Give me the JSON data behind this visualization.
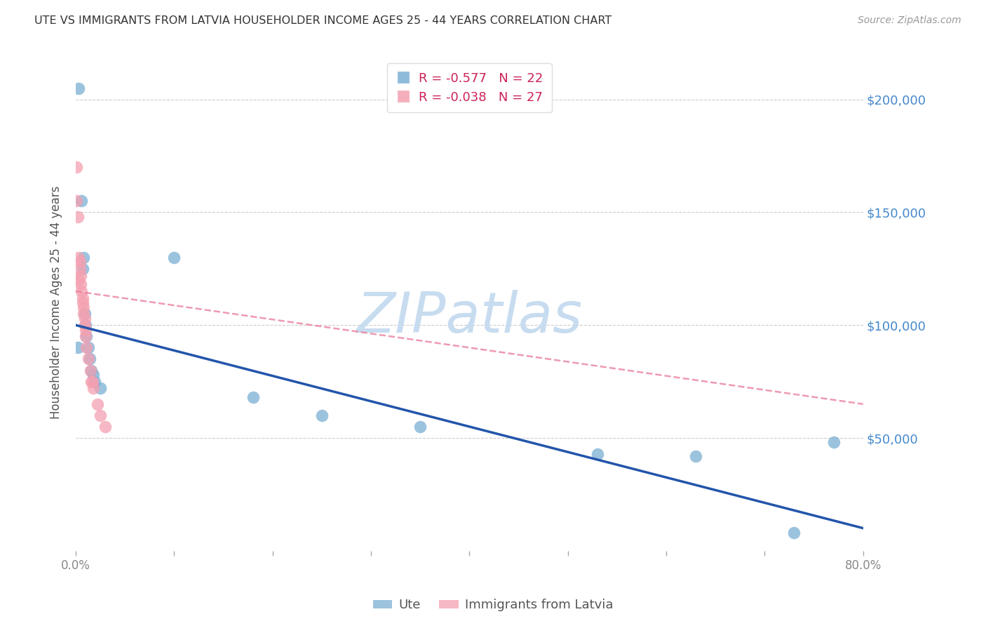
{
  "title": "UTE VS IMMIGRANTS FROM LATVIA HOUSEHOLDER INCOME AGES 25 - 44 YEARS CORRELATION CHART",
  "source": "Source: ZipAtlas.com",
  "ylabel": "Householder Income Ages 25 - 44 years",
  "ute_label": "Ute",
  "latvia_label": "Immigrants from Latvia",
  "ute_R": -0.577,
  "ute_N": 22,
  "latvia_R": -0.038,
  "latvia_N": 27,
  "xlim": [
    0.0,
    0.8
  ],
  "ylim": [
    0,
    220000
  ],
  "yticks": [
    0,
    50000,
    100000,
    150000,
    200000
  ],
  "ytick_labels": [
    "",
    "$50,000",
    "$100,000",
    "$150,000",
    "$200,000"
  ],
  "xticks": [
    0.0,
    0.1,
    0.2,
    0.3,
    0.4,
    0.5,
    0.6,
    0.7,
    0.8
  ],
  "xtick_labels": [
    "0.0%",
    "",
    "",
    "",
    "",
    "",
    "",
    "",
    "80.0%"
  ],
  "ute_color": "#7BAFD4",
  "latvia_color": "#F4A0B0",
  "ute_line_color": "#2255AA",
  "latvia_line_color": "#E87090",
  "watermark_text": "ZIPatlas",
  "watermark_color": "#C8DCF0",
  "background_color": "#FFFFFF",
  "ute_x": [
    0.003,
    0.006,
    0.007,
    0.008,
    0.009,
    0.01,
    0.011,
    0.013,
    0.014,
    0.016,
    0.018,
    0.019,
    0.025,
    0.1,
    0.18,
    0.25,
    0.35,
    0.53,
    0.63,
    0.73,
    0.77,
    0.002
  ],
  "ute_y": [
    205000,
    155000,
    125000,
    130000,
    105000,
    100000,
    95000,
    90000,
    85000,
    80000,
    78000,
    75000,
    72000,
    130000,
    68000,
    60000,
    55000,
    43000,
    42000,
    8000,
    48000,
    90000
  ],
  "latvia_x": [
    0.001,
    0.001,
    0.002,
    0.003,
    0.003,
    0.004,
    0.004,
    0.005,
    0.005,
    0.006,
    0.007,
    0.007,
    0.008,
    0.008,
    0.009,
    0.009,
    0.01,
    0.01,
    0.011,
    0.013,
    0.015,
    0.016,
    0.017,
    0.018,
    0.022,
    0.025,
    0.03
  ],
  "latvia_y": [
    170000,
    155000,
    148000,
    130000,
    120000,
    128000,
    125000,
    122000,
    118000,
    115000,
    112000,
    110000,
    108000,
    105000,
    103000,
    100000,
    98000,
    95000,
    90000,
    85000,
    80000,
    75000,
    75000,
    72000,
    65000,
    60000,
    55000
  ],
  "ute_line_x0": 0.0,
  "ute_line_y0": 100000,
  "ute_line_x1": 0.8,
  "ute_line_y1": 10000,
  "latvia_line_x0": 0.0,
  "latvia_line_y0": 115000,
  "latvia_line_x1": 0.8,
  "latvia_line_y1": 65000
}
